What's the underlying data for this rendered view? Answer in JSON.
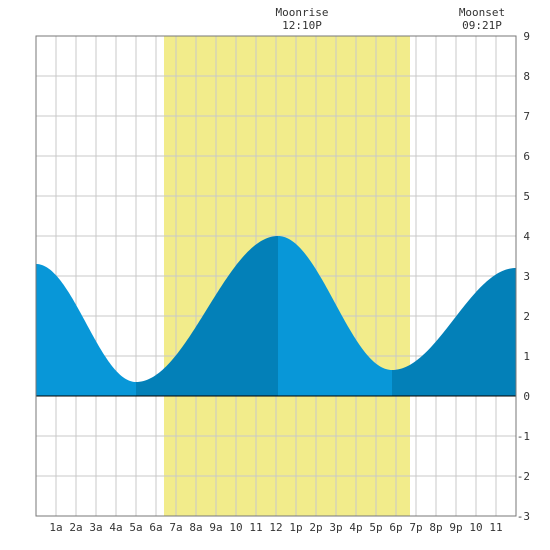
{
  "chart_data": {
    "type": "area",
    "title": "",
    "xlabel": "",
    "ylabel": "",
    "xlim": [
      0,
      24
    ],
    "ylim": [
      -3,
      9
    ],
    "x_ticks": [
      {
        "x": 1,
        "label": "1a"
      },
      {
        "x": 2,
        "label": "2a"
      },
      {
        "x": 3,
        "label": "3a"
      },
      {
        "x": 4,
        "label": "4a"
      },
      {
        "x": 5,
        "label": "5a"
      },
      {
        "x": 6,
        "label": "6a"
      },
      {
        "x": 7,
        "label": "7a"
      },
      {
        "x": 8,
        "label": "8a"
      },
      {
        "x": 9,
        "label": "9a"
      },
      {
        "x": 10,
        "label": "10"
      },
      {
        "x": 11,
        "label": "11"
      },
      {
        "x": 12,
        "label": "12"
      },
      {
        "x": 13,
        "label": "1p"
      },
      {
        "x": 14,
        "label": "2p"
      },
      {
        "x": 15,
        "label": "3p"
      },
      {
        "x": 16,
        "label": "4p"
      },
      {
        "x": 17,
        "label": "5p"
      },
      {
        "x": 18,
        "label": "6p"
      },
      {
        "x": 19,
        "label": "7p"
      },
      {
        "x": 20,
        "label": "8p"
      },
      {
        "x": 21,
        "label": "9p"
      },
      {
        "x": 22,
        "label": "10"
      },
      {
        "x": 23,
        "label": "11"
      }
    ],
    "y_ticks": [
      -3,
      -2,
      -1,
      0,
      1,
      2,
      3,
      4,
      5,
      6,
      7,
      8,
      9
    ],
    "grid": true,
    "daylight": {
      "start": 6.4,
      "end": 18.7
    },
    "moon_labels": [
      {
        "label": "Moonrise",
        "time": "12:10P",
        "x": 13.3
      },
      {
        "label": "Moonset",
        "time": "09:21P",
        "x": 22.3
      }
    ],
    "extremes": [
      {
        "x": 0.0,
        "y": 3.3
      },
      {
        "x": 5.0,
        "y": 0.35
      },
      {
        "x": 12.1,
        "y": 4.0
      },
      {
        "x": 17.8,
        "y": 0.65
      },
      {
        "x": 24.0,
        "y": 3.2
      }
    ],
    "tide_segments": [
      {
        "x_start": 0.0,
        "x_end": 5.0,
        "shade": "light"
      },
      {
        "x_start": 5.0,
        "x_end": 12.1,
        "shade": "dark"
      },
      {
        "x_start": 12.1,
        "x_end": 17.8,
        "shade": "light"
      },
      {
        "x_start": 17.8,
        "x_end": 24.0,
        "shade": "dark"
      }
    ],
    "colors": {
      "daylight": "#f2ec8b",
      "water_light": "#0897d8",
      "water_dark": "#0380b8",
      "grid": "#c8c8c8",
      "frame": "#777777",
      "zero_line": "#000000"
    }
  }
}
